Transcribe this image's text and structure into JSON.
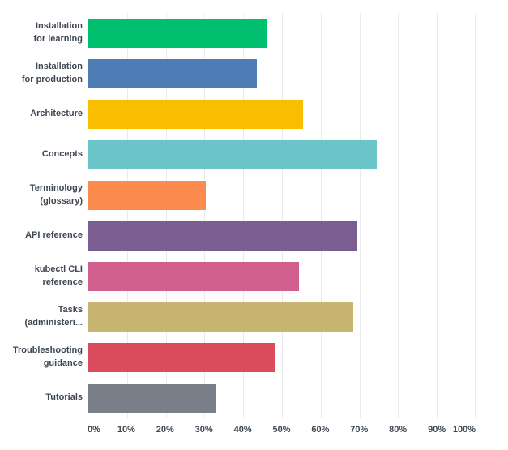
{
  "chart_data": {
    "type": "bar",
    "orientation": "horizontal",
    "title": "",
    "xlabel": "",
    "ylabel": "",
    "xlim": [
      0,
      100
    ],
    "grid": "vertical",
    "legend": "none",
    "categories": [
      "Installation for learning",
      "Installation for production",
      "Architecture",
      "Concepts",
      "Terminology (glossary)",
      "API reference",
      "kubectl CLI reference",
      "Tasks (administeri...)",
      "Troubleshooting guidance",
      "Tutorials"
    ],
    "values": [
      46.3,
      43.5,
      55.5,
      74.5,
      30.3,
      69.5,
      54.4,
      68.5,
      48.4,
      33.1
    ],
    "x_ticks": [
      "0%",
      "10%",
      "20%",
      "30%",
      "40%",
      "50%",
      "60%",
      "70%",
      "80%",
      "90%",
      "100%"
    ],
    "rows": [
      {
        "label_display": "Installation\nfor learning",
        "value": 46.3,
        "color": "#00bf6f"
      },
      {
        "label_display": "Installation\nfor production",
        "value": 43.5,
        "color": "#4e7cb5"
      },
      {
        "label_display": "Architecture",
        "value": 55.5,
        "color": "#f9be00"
      },
      {
        "label_display": "Concepts",
        "value": 74.5,
        "color": "#6ac6c9"
      },
      {
        "label_display": "Terminology\n(glossary)",
        "value": 30.3,
        "color": "#fb8b4f"
      },
      {
        "label_display": "API reference",
        "value": 69.5,
        "color": "#7b5e91"
      },
      {
        "label_display": "kubectl CLI\nreference",
        "value": 54.4,
        "color": "#d2608f"
      },
      {
        "label_display": "Tasks\n(administeri...",
        "value": 68.5,
        "color": "#c8b572"
      },
      {
        "label_display": "Troubleshooting\nguidance",
        "value": 48.4,
        "color": "#da4c5b"
      },
      {
        "label_display": "Tutorials",
        "value": 33.1,
        "color": "#798089"
      }
    ],
    "colors": {
      "axis_line": "#c6c9cd",
      "gridline": "#e9eaec",
      "label_text": "#3e4753",
      "background": "#ffffff"
    }
  }
}
